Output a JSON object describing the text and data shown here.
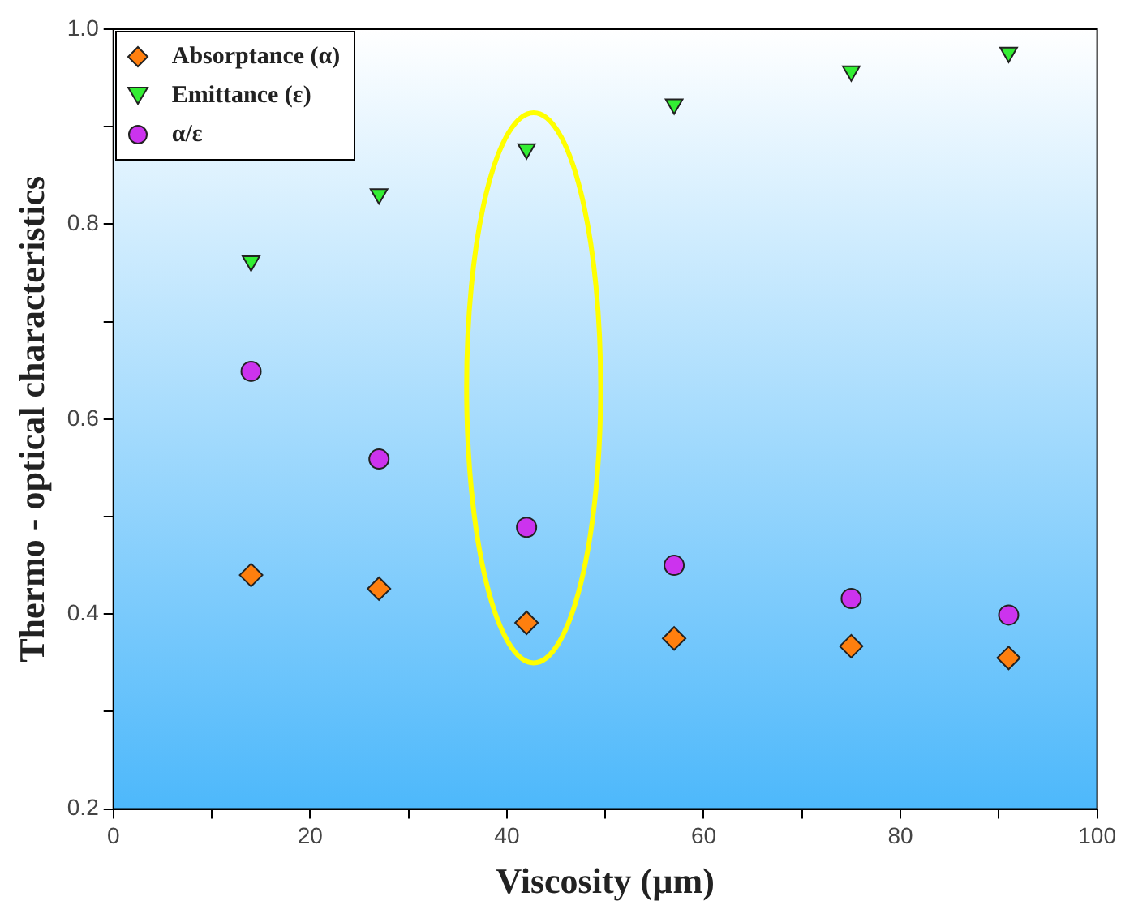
{
  "chart_data": {
    "type": "scatter",
    "xlabel": "Viscosity (µm)",
    "ylabel": "Thermo - optical characteristics",
    "x": [
      14,
      27,
      42,
      57,
      75,
      91
    ],
    "series": [
      {
        "name": "Absorptance (α)",
        "color": "#ff7f0e",
        "marker": "diamond",
        "values": [
          0.44,
          0.426,
          0.391,
          0.375,
          0.367,
          0.355
        ]
      },
      {
        "name": "Emittance (ε)",
        "color": "#33ee33",
        "marker": "triangle",
        "values": [
          0.762,
          0.831,
          0.877,
          0.923,
          0.957,
          0.976
        ]
      },
      {
        "name": "α/ε",
        "color": "#cc33ee",
        "marker": "circle",
        "values": [
          0.649,
          0.559,
          0.489,
          0.45,
          0.416,
          0.399
        ]
      }
    ],
    "xlim": [
      0,
      100
    ],
    "xticks": [
      0,
      {
        "value": 10,
        "label": null
      },
      20,
      {
        "value": 30,
        "label": null
      },
      40,
      {
        "value": 50,
        "label": null
      },
      60,
      {
        "value": 70,
        "label": null
      },
      80,
      {
        "value": 90,
        "label": null
      },
      100
    ],
    "ylim": [
      0.2,
      1.0
    ],
    "yticks": [
      {
        "value": 0.2,
        "label": "0.2"
      },
      {
        "value": 0.3,
        "label": null
      },
      {
        "value": 0.4,
        "label": "0.4"
      },
      {
        "value": 0.5,
        "label": null
      },
      {
        "value": 0.6,
        "label": "0.6"
      },
      {
        "value": 0.7,
        "label": null
      },
      {
        "value": 0.8,
        "label": "0.8"
      },
      {
        "value": 0.9,
        "label": null
      },
      {
        "value": 1.0,
        "label": "1.0"
      }
    ],
    "legend": "top left",
    "grid": false
  }
}
